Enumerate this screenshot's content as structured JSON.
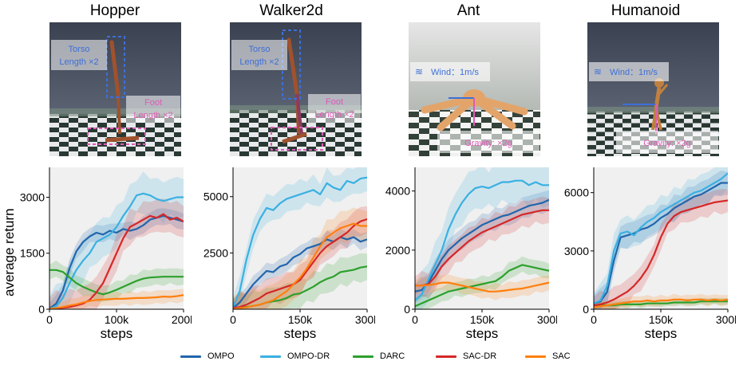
{
  "colors": {
    "OMPO": "#2166ac",
    "OMPO-DR": "#3ab0e2",
    "DARC": "#2ca02c",
    "SAC-DR": "#d62728",
    "SAC": "#ff7f0e",
    "panel_bg": "#f0f0f0"
  },
  "legend": [
    "OMPO",
    "OMPO-DR",
    "DARC",
    "SAC-DR",
    "SAC"
  ],
  "ylabel": "average return",
  "scenes": [
    {
      "id": "hopper",
      "labels": [
        "Torso",
        "Length ×2",
        "Foot",
        "Length ×2"
      ]
    },
    {
      "id": "walker",
      "labels": [
        "Torso",
        "Length ×2",
        "Foot",
        "Length ×2"
      ]
    },
    {
      "id": "ant",
      "labels": [
        "Wind：1m/s",
        "Gravity: ×2g"
      ]
    },
    {
      "id": "humanoid",
      "labels": [
        "Wind：1m/s",
        "Gravity: ×2g"
      ]
    }
  ],
  "chart_data": [
    {
      "type": "line",
      "title": "Hopper",
      "xlabel": "steps",
      "ylabel": "average return",
      "xlim": [
        0,
        200000
      ],
      "ylim": [
        0,
        3800
      ],
      "xticks": [
        0,
        100000,
        200000
      ],
      "xtick_labels": [
        "0",
        "100k",
        "200k"
      ],
      "yticks": [
        0,
        1500,
        3000
      ],
      "ytick_labels": [
        "0",
        "1500",
        "3000"
      ],
      "x": [
        0,
        10000,
        20000,
        30000,
        40000,
        50000,
        60000,
        70000,
        80000,
        90000,
        100000,
        110000,
        120000,
        130000,
        140000,
        150000,
        160000,
        170000,
        180000,
        190000,
        200000
      ],
      "series": [
        {
          "name": "OMPO",
          "values": [
            20,
            150,
            500,
            1100,
            1550,
            1800,
            1950,
            2050,
            2000,
            2100,
            2050,
            2150,
            2100,
            2150,
            2250,
            2400,
            2450,
            2500,
            2450,
            2400,
            2350
          ],
          "band": 250
        },
        {
          "name": "OMPO-DR",
          "values": [
            10,
            80,
            300,
            700,
            1050,
            1300,
            1500,
            1800,
            1900,
            2000,
            2200,
            2500,
            2750,
            3050,
            3100,
            3050,
            2950,
            2900,
            2950,
            3000,
            3000
          ],
          "band": 600
        },
        {
          "name": "DARC",
          "values": [
            1050,
            1050,
            1000,
            850,
            700,
            600,
            520,
            450,
            400,
            450,
            520,
            600,
            680,
            760,
            820,
            850,
            860,
            870,
            870,
            870,
            870
          ],
          "band": 250
        },
        {
          "name": "SAC-DR",
          "values": [
            10,
            20,
            40,
            60,
            100,
            150,
            250,
            450,
            700,
            1100,
            1500,
            1900,
            2200,
            2300,
            2400,
            2500,
            2450,
            2550,
            2400,
            2450,
            2350
          ],
          "band": 500
        },
        {
          "name": "SAC",
          "values": [
            10,
            30,
            60,
            100,
            130,
            180,
            220,
            250,
            260,
            270,
            280,
            280,
            290,
            300,
            300,
            310,
            320,
            340,
            330,
            350,
            380
          ],
          "band": 200
        }
      ]
    },
    {
      "type": "line",
      "title": "Walker2d",
      "xlabel": "steps",
      "ylabel": "",
      "xlim": [
        0,
        300000
      ],
      "ylim": [
        0,
        6300
      ],
      "xticks": [
        0,
        150000,
        300000
      ],
      "xtick_labels": [
        "0",
        "150k",
        "300k"
      ],
      "yticks": [
        2500,
        5000
      ],
      "ytick_labels": [
        "2500",
        "5000"
      ],
      "x": [
        0,
        15000,
        30000,
        45000,
        60000,
        75000,
        90000,
        105000,
        120000,
        135000,
        150000,
        165000,
        180000,
        195000,
        210000,
        225000,
        240000,
        255000,
        270000,
        285000,
        300000
      ],
      "series": [
        {
          "name": "OMPO",
          "values": [
            50,
            300,
            700,
            1100,
            1400,
            1700,
            1650,
            1900,
            2000,
            2300,
            2450,
            2700,
            2800,
            2900,
            3100,
            3000,
            3200,
            3100,
            3200,
            3000,
            3100
          ],
          "band": 400
        },
        {
          "name": "OMPO-DR",
          "values": [
            100,
            800,
            2200,
            3300,
            4000,
            4500,
            4400,
            4700,
            4900,
            5000,
            5100,
            5200,
            5300,
            5100,
            5600,
            5400,
            5300,
            5700,
            5600,
            5800,
            5850
          ],
          "band": 700
        },
        {
          "name": "DARC",
          "values": [
            20,
            50,
            100,
            150,
            200,
            300,
            350,
            400,
            500,
            650,
            700,
            850,
            1000,
            1200,
            1350,
            1450,
            1650,
            1700,
            1750,
            1850,
            1900
          ],
          "band": 700
        },
        {
          "name": "SAC-DR",
          "values": [
            50,
            100,
            200,
            350,
            500,
            700,
            800,
            900,
            1000,
            1100,
            1300,
            1700,
            2100,
            2500,
            2800,
            3000,
            3200,
            3400,
            3700,
            3900,
            4000
          ],
          "band": 700
        },
        {
          "name": "SAC",
          "values": [
            10,
            50,
            80,
            150,
            200,
            300,
            400,
            600,
            800,
            1100,
            1400,
            1800,
            2300,
            2800,
            3200,
            3400,
            3600,
            3700,
            3800,
            3700,
            3700
          ],
          "band": 800
        }
      ]
    },
    {
      "type": "line",
      "title": "Ant",
      "xlabel": "steps",
      "ylabel": "",
      "xlim": [
        0,
        300000
      ],
      "ylim": [
        0,
        4800
      ],
      "xticks": [
        0,
        150000,
        300000
      ],
      "xtick_labels": [
        "0",
        "150k",
        "300k"
      ],
      "yticks": [
        0,
        2000,
        4000
      ],
      "ytick_labels": [
        "0",
        "2000",
        "4000"
      ],
      "x": [
        0,
        15000,
        30000,
        45000,
        60000,
        75000,
        90000,
        105000,
        120000,
        135000,
        150000,
        165000,
        180000,
        195000,
        210000,
        225000,
        240000,
        255000,
        270000,
        285000,
        300000
      ],
      "series": [
        {
          "name": "OMPO",
          "values": [
            600,
            650,
            900,
            1300,
            1700,
            2000,
            2200,
            2400,
            2550,
            2700,
            2850,
            2950,
            3050,
            3150,
            3200,
            3300,
            3400,
            3500,
            3550,
            3600,
            3700
          ],
          "band": 400
        },
        {
          "name": "OMPO-DR",
          "values": [
            300,
            500,
            1000,
            1500,
            2000,
            2700,
            3200,
            3600,
            3900,
            4100,
            4150,
            4100,
            4200,
            4300,
            4300,
            4350,
            4350,
            4200,
            4300,
            4200,
            4200
          ],
          "band": 800
        },
        {
          "name": "DARC",
          "values": [
            100,
            200,
            300,
            400,
            500,
            600,
            650,
            700,
            750,
            800,
            850,
            900,
            950,
            1100,
            1300,
            1400,
            1500,
            1450,
            1400,
            1350,
            1300
          ],
          "band": 300
        },
        {
          "name": "SAC-DR",
          "values": [
            800,
            800,
            850,
            1100,
            1450,
            1700,
            1900,
            2100,
            2300,
            2450,
            2600,
            2700,
            2800,
            2900,
            3000,
            3100,
            3200,
            3250,
            3300,
            3350,
            3350
          ],
          "band": 500
        },
        {
          "name": "SAC",
          "values": [
            800,
            800,
            820,
            850,
            900,
            900,
            850,
            800,
            750,
            700,
            650,
            600,
            600,
            620,
            650,
            680,
            700,
            750,
            800,
            850,
            900
          ],
          "band": 300
        }
      ]
    },
    {
      "type": "line",
      "title": "Humanoid",
      "xlabel": "steps",
      "ylabel": "",
      "xlim": [
        0,
        300000
      ],
      "ylim": [
        0,
        7300
      ],
      "xticks": [
        0,
        150000,
        300000
      ],
      "xtick_labels": [
        "0",
        "150k",
        "300k"
      ],
      "yticks": [
        0,
        3000,
        6000
      ],
      "ytick_labels": [
        "0",
        "3000",
        "6000"
      ],
      "x": [
        0,
        15000,
        30000,
        45000,
        60000,
        75000,
        90000,
        105000,
        120000,
        135000,
        150000,
        165000,
        180000,
        195000,
        210000,
        225000,
        240000,
        255000,
        270000,
        285000,
        300000
      ],
      "series": [
        {
          "name": "OMPO",
          "values": [
            300,
            400,
            900,
            2500,
            3700,
            3800,
            3900,
            4100,
            4200,
            4400,
            4700,
            4900,
            5200,
            5400,
            5600,
            5800,
            5900,
            6100,
            6300,
            6500,
            6500
          ],
          "band": 700
        },
        {
          "name": "OMPO-DR",
          "values": [
            300,
            450,
            1200,
            3000,
            3900,
            4000,
            3800,
            4200,
            4500,
            4700,
            5000,
            5200,
            5400,
            5600,
            5800,
            6000,
            6100,
            6300,
            6500,
            6700,
            7000
          ],
          "band": 900
        },
        {
          "name": "DARC",
          "values": [
            200,
            200,
            200,
            200,
            250,
            250,
            250,
            250,
            300,
            300,
            300,
            300,
            350,
            350,
            350,
            350,
            400,
            400,
            400,
            400,
            400
          ],
          "band": 200
        },
        {
          "name": "SAC-DR",
          "values": [
            200,
            250,
            350,
            500,
            700,
            900,
            1200,
            1600,
            2100,
            2800,
            3700,
            4400,
            4800,
            5000,
            5100,
            5200,
            5300,
            5400,
            5500,
            5550,
            5600
          ],
          "band": 700
        },
        {
          "name": "SAC",
          "values": [
            100,
            150,
            200,
            250,
            300,
            350,
            400,
            400,
            450,
            400,
            450,
            450,
            500,
            500,
            450,
            500,
            500,
            450,
            500,
            450,
            500
          ],
          "band": 300
        }
      ]
    }
  ]
}
